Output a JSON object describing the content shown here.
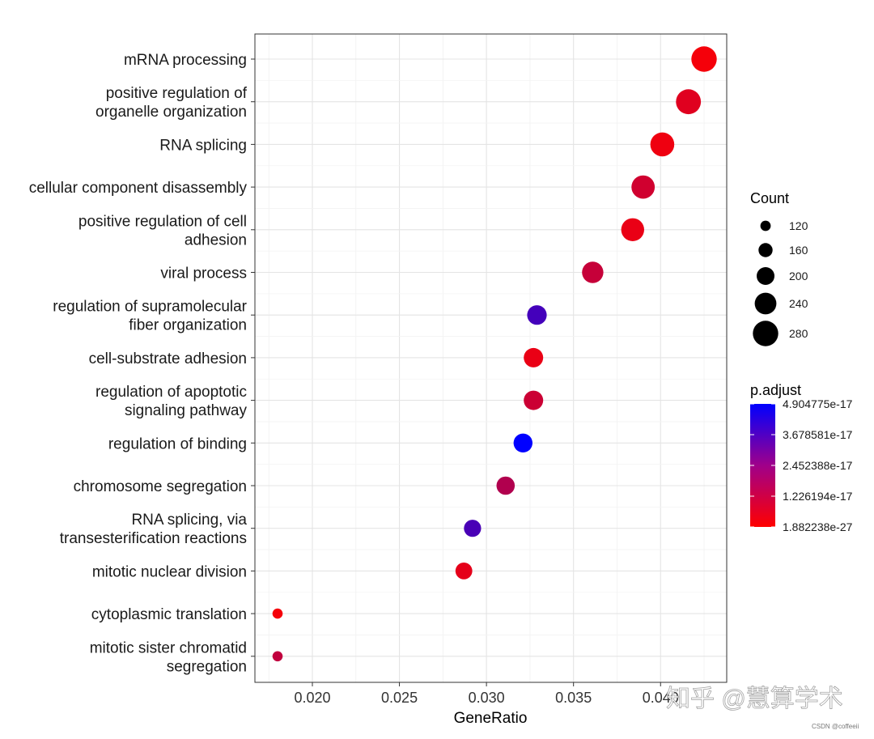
{
  "chart_data": {
    "type": "scatter",
    "xlabel": "GeneRatio",
    "xlim": [
      0.0167,
      0.0438
    ],
    "x_ticks": [
      "0.020",
      "0.025",
      "0.030",
      "0.035",
      "0.040"
    ],
    "x_tick_values": [
      0.02,
      0.025,
      0.03,
      0.035,
      0.04
    ],
    "grid": true,
    "categories": [
      [
        "mRNA processing"
      ],
      [
        "positive regulation of",
        "organelle organization"
      ],
      [
        "RNA splicing"
      ],
      [
        "cellular component disassembly"
      ],
      [
        "positive regulation of cell",
        "adhesion"
      ],
      [
        "viral process"
      ],
      [
        "regulation of supramolecular",
        "fiber organization"
      ],
      [
        "cell-substrate adhesion"
      ],
      [
        "regulation of apoptotic",
        "signaling pathway"
      ],
      [
        "regulation of binding"
      ],
      [
        "chromosome segregation"
      ],
      [
        "RNA splicing, via",
        "transesterification reactions"
      ],
      [
        "mitotic nuclear division"
      ],
      [
        "cytoplasmic translation"
      ],
      [
        "mitotic sister chromatid",
        "segregation"
      ]
    ],
    "points": [
      {
        "gene_ratio": 0.0425,
        "count": 280,
        "p_adjust": 2e-18
      },
      {
        "gene_ratio": 0.0416,
        "count": 275,
        "p_adjust": 6e-18
      },
      {
        "gene_ratio": 0.0401,
        "count": 265,
        "p_adjust": 3e-18
      },
      {
        "gene_ratio": 0.039,
        "count": 258,
        "p_adjust": 9e-18
      },
      {
        "gene_ratio": 0.0384,
        "count": 254,
        "p_adjust": 4e-18
      },
      {
        "gene_ratio": 0.0361,
        "count": 238,
        "p_adjust": 1.1e-17
      },
      {
        "gene_ratio": 0.0329,
        "count": 218,
        "p_adjust": 3.6e-17
      },
      {
        "gene_ratio": 0.0327,
        "count": 216,
        "p_adjust": 4e-18
      },
      {
        "gene_ratio": 0.0327,
        "count": 216,
        "p_adjust": 1e-17
      },
      {
        "gene_ratio": 0.0321,
        "count": 212,
        "p_adjust": 4.9e-17
      },
      {
        "gene_ratio": 0.0311,
        "count": 205,
        "p_adjust": 1.5e-17
      },
      {
        "gene_ratio": 0.0292,
        "count": 193,
        "p_adjust": 3.5e-17
      },
      {
        "gene_ratio": 0.0287,
        "count": 189,
        "p_adjust": 5e-18
      },
      {
        "gene_ratio": 0.018,
        "count": 119,
        "p_adjust": 2e-18
      },
      {
        "gene_ratio": 0.018,
        "count": 119,
        "p_adjust": 1.2e-17
      }
    ],
    "size_legend": {
      "title": "Count",
      "breaks": [
        120,
        160,
        200,
        240,
        280
      ],
      "labels": [
        "120",
        "160",
        "200",
        "240",
        "280"
      ]
    },
    "color_legend": {
      "title": "p.adjust",
      "labels": [
        "4.904775e-17",
        "3.678581e-17",
        "2.452388e-17",
        "1.226194e-17",
        "1.882238e-27"
      ],
      "values": [
        4.904775e-17,
        3.678581e-17,
        2.452388e-17,
        1.226194e-17,
        1.882238e-27
      ],
      "low_color": "#ff0000",
      "high_color": "#0000ff"
    },
    "legend_placement": "right"
  },
  "watermark": {
    "text": "知乎 @慧算学术",
    "credit": "CSDN @coffeeii"
  }
}
